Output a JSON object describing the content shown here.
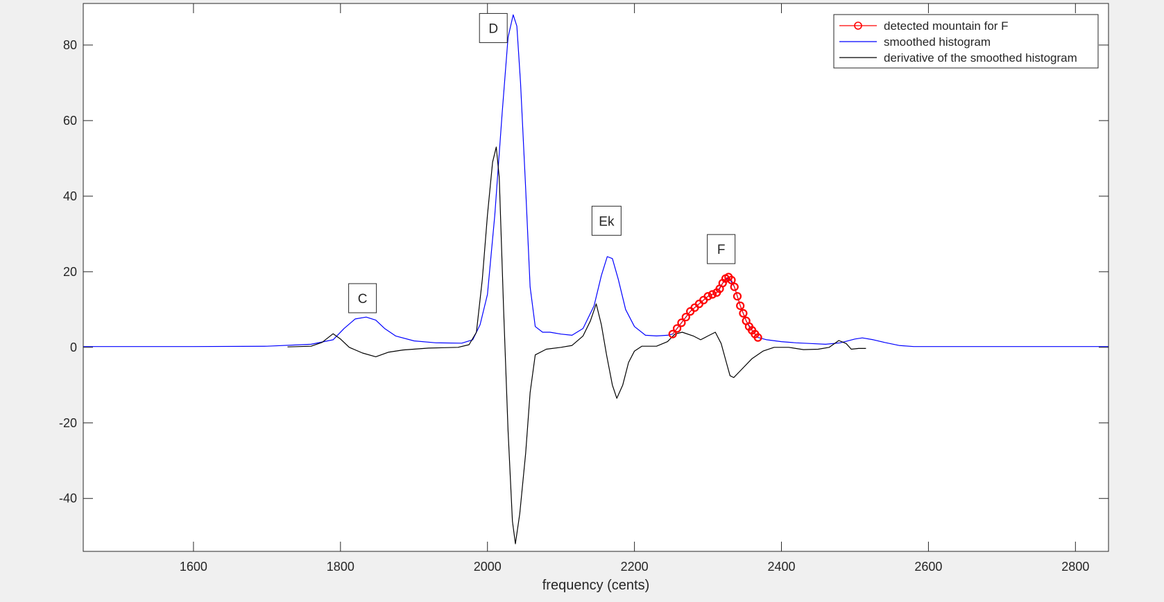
{
  "chart_data": {
    "type": "line",
    "title": "",
    "xlabel": "frequency (cents)",
    "ylabel": "",
    "xlim": [
      1450,
      2845
    ],
    "ylim": [
      -54,
      91
    ],
    "xticks": [
      1600,
      1800,
      2000,
      2200,
      2400,
      2600,
      2800
    ],
    "yticks": [
      -40,
      -20,
      0,
      20,
      40,
      60,
      80
    ],
    "grid": false,
    "legend_position": "top-right",
    "annotations": [
      {
        "text": "C",
        "x": 1830,
        "y": 13
      },
      {
        "text": "D",
        "x": 2008,
        "y": 84.5
      },
      {
        "text": "Ek",
        "x": 2162,
        "y": 33.5
      },
      {
        "text": "F",
        "x": 2318,
        "y": 26
      }
    ],
    "series": [
      {
        "name": "detected mountain for F",
        "color": "#ff0000",
        "marker": "o",
        "points": [
          [
            2252,
            3.5
          ],
          [
            2258,
            5
          ],
          [
            2264,
            6.5
          ],
          [
            2270,
            8
          ],
          [
            2276,
            9.5
          ],
          [
            2282,
            10.5
          ],
          [
            2288,
            11.5
          ],
          [
            2294,
            12.5
          ],
          [
            2300,
            13.5
          ],
          [
            2306,
            14
          ],
          [
            2312,
            14.5
          ],
          [
            2316,
            15.5
          ],
          [
            2320,
            17
          ],
          [
            2324,
            18.2
          ],
          [
            2328,
            18.6
          ],
          [
            2332,
            17.8
          ],
          [
            2336,
            16
          ],
          [
            2340,
            13.5
          ],
          [
            2344,
            11
          ],
          [
            2348,
            9
          ],
          [
            2352,
            7
          ],
          [
            2356,
            5.5
          ],
          [
            2360,
            4.5
          ],
          [
            2364,
            3.5
          ],
          [
            2368,
            2.6
          ]
        ]
      },
      {
        "name": "smoothed histogram",
        "color": "#0000ff",
        "points": [
          [
            1450,
            0.2
          ],
          [
            1600,
            0.2
          ],
          [
            1700,
            0.3
          ],
          [
            1760,
            0.8
          ],
          [
            1790,
            2
          ],
          [
            1805,
            5
          ],
          [
            1820,
            7.5
          ],
          [
            1835,
            8
          ],
          [
            1848,
            7.2
          ],
          [
            1860,
            5
          ],
          [
            1875,
            3
          ],
          [
            1900,
            1.7
          ],
          [
            1930,
            1.2
          ],
          [
            1965,
            1.1
          ],
          [
            1980,
            2
          ],
          [
            1990,
            6
          ],
          [
            2000,
            14
          ],
          [
            2010,
            35
          ],
          [
            2020,
            62
          ],
          [
            2028,
            82
          ],
          [
            2035,
            88
          ],
          [
            2040,
            85
          ],
          [
            2045,
            70
          ],
          [
            2052,
            42
          ],
          [
            2058,
            16
          ],
          [
            2065,
            5.5
          ],
          [
            2075,
            4
          ],
          [
            2085,
            4
          ],
          [
            2100,
            3.5
          ],
          [
            2115,
            3.2
          ],
          [
            2130,
            5
          ],
          [
            2145,
            11
          ],
          [
            2155,
            19
          ],
          [
            2163,
            24
          ],
          [
            2170,
            23.5
          ],
          [
            2178,
            18
          ],
          [
            2188,
            10
          ],
          [
            2200,
            5.5
          ],
          [
            2215,
            3.2
          ],
          [
            2230,
            3
          ],
          [
            2245,
            3.2
          ],
          [
            2252,
            3.5
          ],
          [
            2264,
            6.5
          ],
          [
            2276,
            9.5
          ],
          [
            2288,
            11.5
          ],
          [
            2300,
            13.5
          ],
          [
            2312,
            14.5
          ],
          [
            2320,
            17
          ],
          [
            2328,
            18.6
          ],
          [
            2336,
            16
          ],
          [
            2344,
            11
          ],
          [
            2352,
            7
          ],
          [
            2360,
            4.5
          ],
          [
            2368,
            2.6
          ],
          [
            2380,
            2
          ],
          [
            2400,
            1.5
          ],
          [
            2420,
            1.2
          ],
          [
            2440,
            1
          ],
          [
            2460,
            0.8
          ],
          [
            2480,
            1.2
          ],
          [
            2500,
            2.2
          ],
          [
            2510,
            2.5
          ],
          [
            2525,
            2
          ],
          [
            2540,
            1.3
          ],
          [
            2560,
            0.5
          ],
          [
            2580,
            0.2
          ],
          [
            2845,
            0.2
          ]
        ]
      },
      {
        "name": "derivative of the smoothed histogram",
        "color": "#000000",
        "points": [
          [
            1728,
            0.1
          ],
          [
            1760,
            0.3
          ],
          [
            1775,
            1.3
          ],
          [
            1790,
            3.6
          ],
          [
            1800,
            2.2
          ],
          [
            1812,
            0
          ],
          [
            1830,
            -1.5
          ],
          [
            1848,
            -2.5
          ],
          [
            1865,
            -1.3
          ],
          [
            1885,
            -0.7
          ],
          [
            1920,
            -0.2
          ],
          [
            1960,
            0
          ],
          [
            1975,
            0.7
          ],
          [
            1985,
            4
          ],
          [
            1993,
            18
          ],
          [
            2000,
            35
          ],
          [
            2007,
            49
          ],
          [
            2012,
            53
          ],
          [
            2016,
            45
          ],
          [
            2022,
            10
          ],
          [
            2028,
            -22
          ],
          [
            2034,
            -46
          ],
          [
            2038,
            -52
          ],
          [
            2044,
            -44
          ],
          [
            2052,
            -28
          ],
          [
            2058,
            -12
          ],
          [
            2065,
            -2
          ],
          [
            2080,
            -0.5
          ],
          [
            2100,
            0
          ],
          [
            2115,
            0.5
          ],
          [
            2130,
            3
          ],
          [
            2140,
            7
          ],
          [
            2148,
            11.5
          ],
          [
            2155,
            6
          ],
          [
            2162,
            -2
          ],
          [
            2170,
            -10
          ],
          [
            2176,
            -13.5
          ],
          [
            2184,
            -10
          ],
          [
            2192,
            -4
          ],
          [
            2200,
            -1
          ],
          [
            2210,
            0.3
          ],
          [
            2230,
            0.3
          ],
          [
            2245,
            1.5
          ],
          [
            2255,
            3.5
          ],
          [
            2265,
            4
          ],
          [
            2280,
            3
          ],
          [
            2290,
            2
          ],
          [
            2300,
            3
          ],
          [
            2310,
            4
          ],
          [
            2318,
            1
          ],
          [
            2325,
            -4
          ],
          [
            2330,
            -7.5
          ],
          [
            2335,
            -8
          ],
          [
            2345,
            -6
          ],
          [
            2360,
            -3
          ],
          [
            2375,
            -1
          ],
          [
            2390,
            0
          ],
          [
            2410,
            0
          ],
          [
            2430,
            -0.6
          ],
          [
            2450,
            -0.5
          ],
          [
            2465,
            0
          ],
          [
            2478,
            1.8
          ],
          [
            2488,
            1
          ],
          [
            2495,
            -0.5
          ],
          [
            2505,
            -0.3
          ],
          [
            2515,
            -0.3
          ]
        ]
      }
    ]
  }
}
